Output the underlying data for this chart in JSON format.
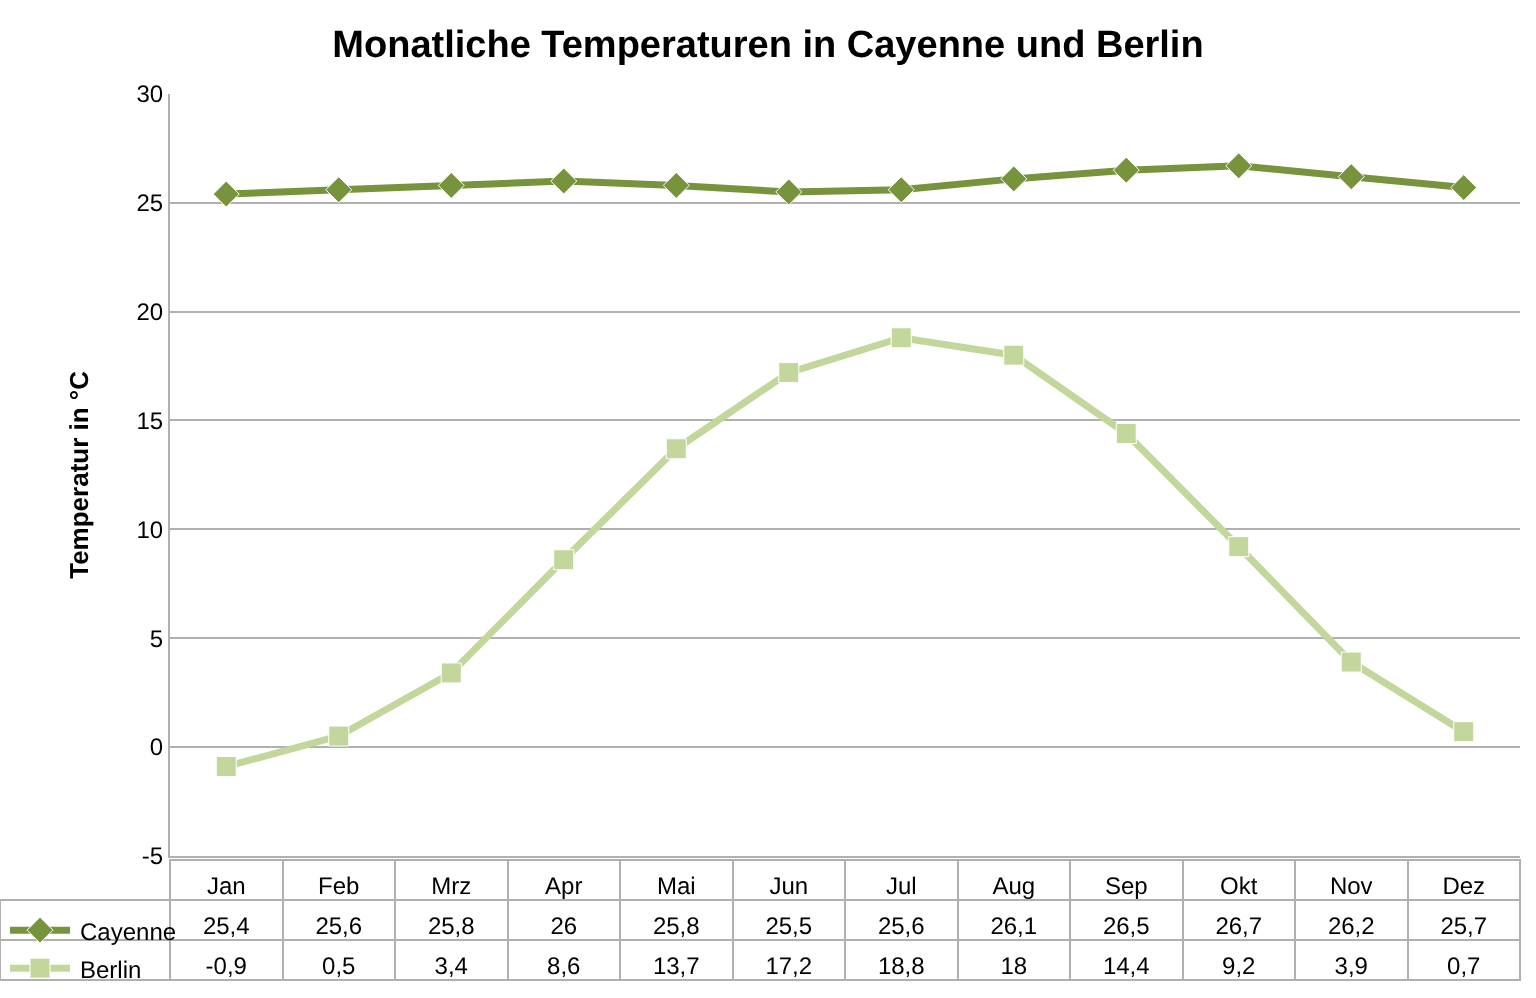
{
  "chart_data": {
    "type": "line",
    "title": "Monatliche Temperaturen in Cayenne und Berlin",
    "ylabel": "Temperatur in °C",
    "categories": [
      "Jan",
      "Feb",
      "Mrz",
      "Apr",
      "Mai",
      "Jun",
      "Jul",
      "Aug",
      "Sep",
      "Okt",
      "Nov",
      "Dez"
    ],
    "series": [
      {
        "name": "Cayenne",
        "color": "#77933c",
        "marker": "diamond",
        "values": [
          25.4,
          25.6,
          25.8,
          26,
          25.8,
          25.5,
          25.6,
          26.1,
          26.5,
          26.7,
          26.2,
          25.7
        ],
        "value_labels": [
          "25,4",
          "25,6",
          "25,8",
          "26",
          "25,8",
          "25,5",
          "25,6",
          "26,1",
          "26,5",
          "26,7",
          "26,2",
          "25,7"
        ]
      },
      {
        "name": "Berlin",
        "color": "#c3d69b",
        "marker": "square",
        "values": [
          -0.9,
          0.5,
          3.4,
          8.6,
          13.7,
          17.2,
          18.8,
          18,
          14.4,
          9.2,
          3.9,
          0.7
        ],
        "value_labels": [
          "-0,9",
          "0,5",
          "3,4",
          "8,6",
          "13,7",
          "17,2",
          "18,8",
          "18",
          "14,4",
          "9,2",
          "3,9",
          "0,7"
        ]
      }
    ],
    "ylim": [
      -5,
      30
    ],
    "yticks": [
      -5,
      0,
      5,
      10,
      15,
      20,
      25,
      30
    ],
    "grid": "y",
    "legend": "bottom",
    "line_style": "solid"
  }
}
